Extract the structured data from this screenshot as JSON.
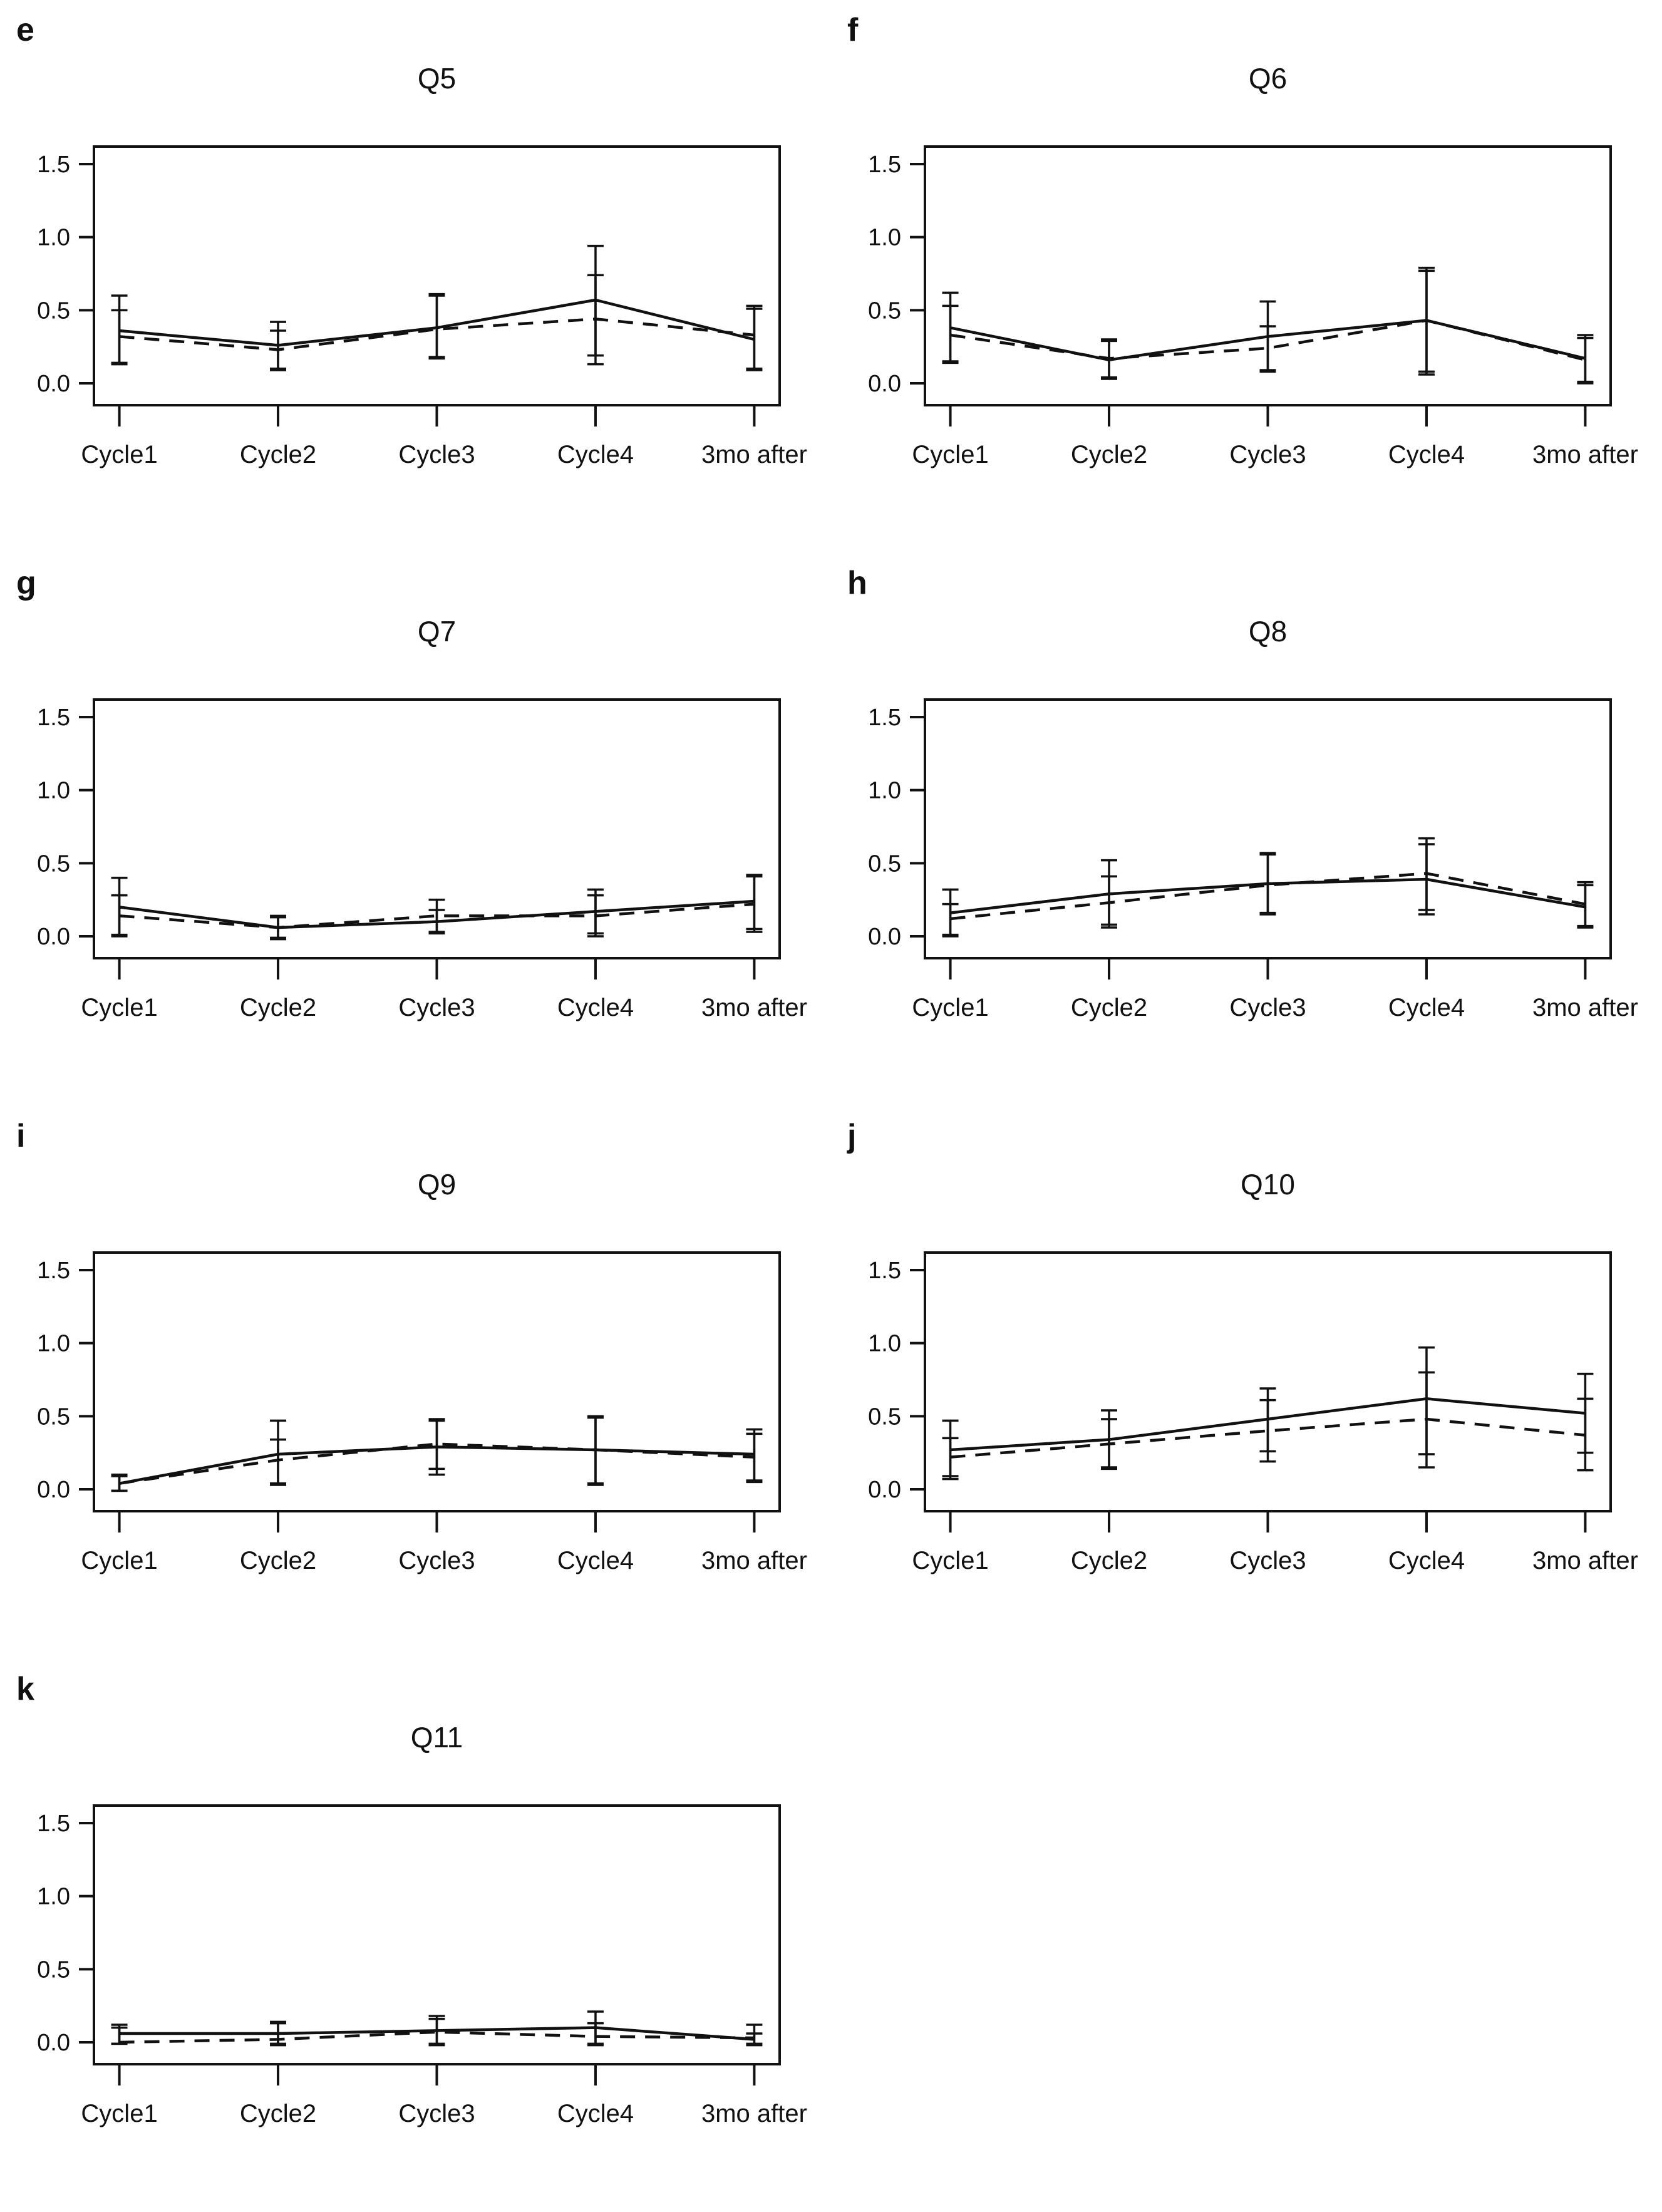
{
  "figure": {
    "background": "#ffffff",
    "stroke_color": "#111111",
    "text_color": "#111111"
  },
  "axis": {
    "ytick_values": [
      0.0,
      0.5,
      1.0,
      1.5
    ],
    "ytick_labels": [
      "0.0",
      "0.5",
      "1.0",
      "1.5"
    ],
    "ylim": [
      -0.15,
      1.62
    ],
    "categories": [
      "Cycle1",
      "Cycle2",
      "Cycle3",
      "Cycle4",
      "3mo after"
    ],
    "grid": false,
    "legend": "none"
  },
  "chart_data": [
    {
      "type": "line",
      "panel": "e",
      "title": "Q5",
      "categories": [
        "Cycle1",
        "Cycle2",
        "Cycle3",
        "Cycle4",
        "3mo after"
      ],
      "ylim": [
        0,
        1.5
      ],
      "yticks": [
        0.0,
        0.5,
        1.0,
        1.5
      ],
      "series": [
        {
          "name": "solid-line-series",
          "style": "solid",
          "values": [
            0.36,
            0.26,
            0.38,
            0.57,
            0.3
          ],
          "err_lo": [
            0.14,
            0.1,
            0.18,
            0.19,
            0.1
          ],
          "err_hi": [
            0.6,
            0.42,
            0.61,
            0.94,
            0.53
          ]
        },
        {
          "name": "dashed-line-series",
          "style": "dashed",
          "values": [
            0.32,
            0.23,
            0.37,
            0.44,
            0.33
          ],
          "err_lo": [
            0.13,
            0.09,
            0.17,
            0.13,
            0.09
          ],
          "err_hi": [
            0.5,
            0.36,
            0.6,
            0.74,
            0.51
          ]
        }
      ]
    },
    {
      "type": "line",
      "panel": "f",
      "title": "Q6",
      "categories": [
        "Cycle1",
        "Cycle2",
        "Cycle3",
        "Cycle4",
        "3mo after"
      ],
      "ylim": [
        0,
        1.5
      ],
      "yticks": [
        0.0,
        0.5,
        1.0,
        1.5
      ],
      "series": [
        {
          "name": "solid-line-series",
          "style": "solid",
          "values": [
            0.38,
            0.16,
            0.32,
            0.43,
            0.17
          ],
          "err_lo": [
            0.15,
            0.03,
            0.08,
            0.06,
            0.0
          ],
          "err_hi": [
            0.62,
            0.3,
            0.56,
            0.79,
            0.33
          ]
        },
        {
          "name": "dashed-line-series",
          "style": "dashed",
          "values": [
            0.33,
            0.17,
            0.24,
            0.43,
            0.16
          ],
          "err_lo": [
            0.14,
            0.04,
            0.09,
            0.08,
            0.01
          ],
          "err_hi": [
            0.53,
            0.29,
            0.39,
            0.77,
            0.31
          ]
        }
      ]
    },
    {
      "type": "line",
      "panel": "g",
      "title": "Q7",
      "categories": [
        "Cycle1",
        "Cycle2",
        "Cycle3",
        "Cycle4",
        "3mo after"
      ],
      "ylim": [
        0,
        1.5
      ],
      "yticks": [
        0.0,
        0.5,
        1.0,
        1.5
      ],
      "series": [
        {
          "name": "solid-line-series",
          "style": "solid",
          "values": [
            0.2,
            0.06,
            0.1,
            0.17,
            0.24
          ],
          "err_lo": [
            0.0,
            -0.02,
            0.02,
            0.0,
            0.03
          ],
          "err_hi": [
            0.4,
            0.14,
            0.25,
            0.32,
            0.42
          ]
        },
        {
          "name": "dashed-line-series",
          "style": "dashed",
          "values": [
            0.14,
            0.06,
            0.14,
            0.14,
            0.22
          ],
          "err_lo": [
            0.01,
            -0.01,
            0.03,
            0.02,
            0.05
          ],
          "err_hi": [
            0.28,
            0.13,
            0.18,
            0.28,
            0.41
          ]
        }
      ]
    },
    {
      "type": "line",
      "panel": "h",
      "title": "Q8",
      "categories": [
        "Cycle1",
        "Cycle2",
        "Cycle3",
        "Cycle4",
        "3mo after"
      ],
      "ylim": [
        0,
        1.5
      ],
      "yticks": [
        0.0,
        0.5,
        1.0,
        1.5
      ],
      "series": [
        {
          "name": "solid-line-series",
          "style": "solid",
          "values": [
            0.16,
            0.29,
            0.36,
            0.39,
            0.2
          ],
          "err_lo": [
            0.0,
            0.06,
            0.15,
            0.15,
            0.06
          ],
          "err_hi": [
            0.32,
            0.52,
            0.57,
            0.63,
            0.35
          ]
        },
        {
          "name": "dashed-line-series",
          "style": "dashed",
          "values": [
            0.12,
            0.23,
            0.35,
            0.43,
            0.22
          ],
          "err_lo": [
            0.01,
            0.08,
            0.16,
            0.18,
            0.07
          ],
          "err_hi": [
            0.22,
            0.41,
            0.56,
            0.67,
            0.37
          ]
        }
      ]
    },
    {
      "type": "line",
      "panel": "i",
      "title": "Q9",
      "categories": [
        "Cycle1",
        "Cycle2",
        "Cycle3",
        "Cycle4",
        "3mo after"
      ],
      "ylim": [
        0,
        1.5
      ],
      "yticks": [
        0.0,
        0.5,
        1.0,
        1.5
      ],
      "series": [
        {
          "name": "solid-line-series",
          "style": "solid",
          "values": [
            0.04,
            0.24,
            0.29,
            0.27,
            0.24
          ],
          "err_lo": [
            -0.01,
            0.03,
            0.1,
            0.03,
            0.05
          ],
          "err_hi": [
            0.1,
            0.47,
            0.48,
            0.5,
            0.41
          ]
        },
        {
          "name": "dashed-line-series",
          "style": "dashed",
          "values": [
            0.04,
            0.2,
            0.31,
            0.27,
            0.22
          ],
          "err_lo": [
            -0.01,
            0.04,
            0.14,
            0.04,
            0.06
          ],
          "err_hi": [
            0.09,
            0.34,
            0.47,
            0.49,
            0.38
          ]
        }
      ]
    },
    {
      "type": "line",
      "panel": "j",
      "title": "Q10",
      "categories": [
        "Cycle1",
        "Cycle2",
        "Cycle3",
        "Cycle4",
        "3mo after"
      ],
      "ylim": [
        0,
        1.5
      ],
      "yticks": [
        0.0,
        0.5,
        1.0,
        1.5
      ],
      "series": [
        {
          "name": "solid-line-series",
          "style": "solid",
          "values": [
            0.27,
            0.34,
            0.48,
            0.62,
            0.52
          ],
          "err_lo": [
            0.07,
            0.14,
            0.26,
            0.24,
            0.25
          ],
          "err_hi": [
            0.47,
            0.54,
            0.69,
            0.97,
            0.79
          ]
        },
        {
          "name": "dashed-line-series",
          "style": "dashed",
          "values": [
            0.22,
            0.31,
            0.4,
            0.48,
            0.37
          ],
          "err_lo": [
            0.09,
            0.15,
            0.19,
            0.15,
            0.13
          ],
          "err_hi": [
            0.35,
            0.48,
            0.61,
            0.8,
            0.62
          ]
        }
      ]
    },
    {
      "type": "line",
      "panel": "k",
      "title": "Q11",
      "categories": [
        "Cycle1",
        "Cycle2",
        "Cycle3",
        "Cycle4",
        "3mo after"
      ],
      "ylim": [
        0,
        1.5
      ],
      "yticks": [
        0.0,
        0.5,
        1.0,
        1.5
      ],
      "series": [
        {
          "name": "solid-line-series",
          "style": "solid",
          "values": [
            0.06,
            0.06,
            0.08,
            0.1,
            0.02
          ],
          "err_lo": [
            -0.01,
            -0.02,
            -0.02,
            -0.02,
            -0.02
          ],
          "err_hi": [
            0.12,
            0.14,
            0.18,
            0.21,
            0.12
          ]
        },
        {
          "name": "dashed-line-series",
          "style": "dashed",
          "values": [
            0.0,
            0.02,
            0.07,
            0.04,
            0.03
          ],
          "err_lo": [
            -0.01,
            -0.01,
            -0.01,
            -0.01,
            -0.01
          ],
          "err_hi": [
            0.1,
            0.13,
            0.16,
            0.13,
            0.06
          ]
        }
      ]
    }
  ]
}
